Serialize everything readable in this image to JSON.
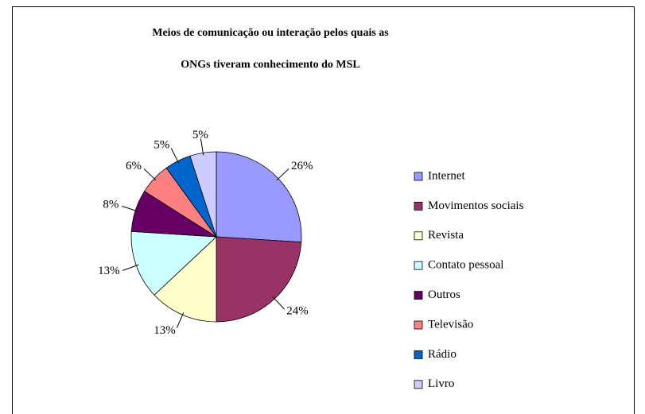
{
  "chart_data": {
    "type": "pie",
    "title": [
      "Meios de comunicação ou interação pelos quais as",
      "ONGs tiveram conhecimento do MSL"
    ],
    "categories": [
      "Internet",
      "Movimentos sociais",
      "Revista",
      "Contato pessoal",
      "Outros",
      "Televisão",
      "Rádio",
      "Livro"
    ],
    "values": [
      26,
      24,
      13,
      13,
      8,
      6,
      5,
      5
    ],
    "value_labels": [
      "26%",
      "24%",
      "13%",
      "13%",
      "8%",
      "6%",
      "5%",
      "5%"
    ],
    "colors": [
      "#9999ff",
      "#993366",
      "#ffffcc",
      "#ccffff",
      "#660066",
      "#ff8080",
      "#0066cc",
      "#ccccff"
    ],
    "legend": "right"
  }
}
